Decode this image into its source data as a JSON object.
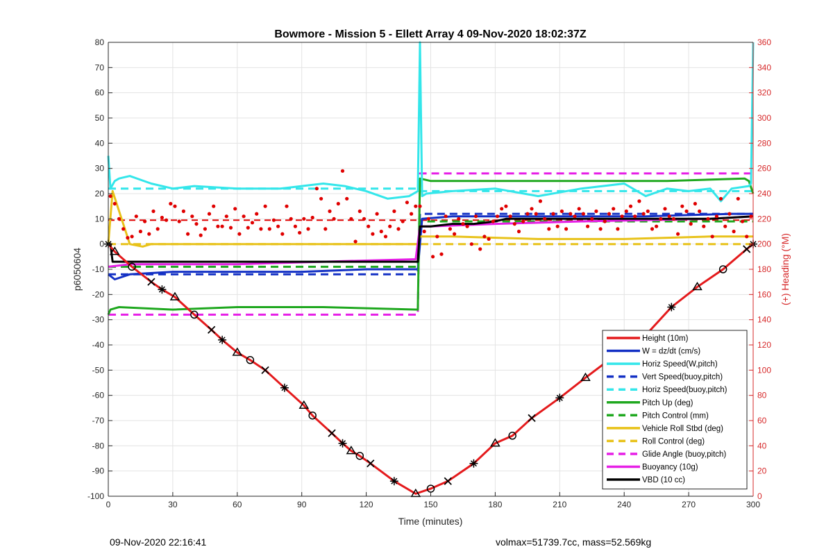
{
  "chart_data": {
    "type": "line",
    "title": "Bowmore - Mission 5 - Ellett Array 4 09-Nov-2020 18:02:37Z",
    "xlabel": "Time (minutes)",
    "ylabel": "p6050604",
    "ylabel_right": "(+) Heading (°M)",
    "xlim": [
      0,
      300
    ],
    "ylim": [
      -100,
      80
    ],
    "ylim_right": [
      0,
      360
    ],
    "x_ticks": [
      "0",
      "30",
      "60",
      "90",
      "120",
      "150",
      "180",
      "210",
      "240",
      "270",
      "300"
    ],
    "y_ticks": [
      "80",
      "70",
      "60",
      "50",
      "40",
      "30",
      "20",
      "10",
      "0",
      "-10",
      "-20",
      "-30",
      "-40",
      "-50",
      "-60",
      "-70",
      "-80",
      "-90",
      "-100"
    ],
    "y_right_ticks": [
      "360",
      "340",
      "320",
      "300",
      "280",
      "260",
      "240",
      "220",
      "200",
      "180",
      "160",
      "140",
      "120",
      "100",
      "80",
      "60",
      "40",
      "20",
      "0"
    ],
    "grid": true,
    "legend_position": "bottom-right",
    "colors": {
      "red": "#e41a1c",
      "blue": "#1330c4",
      "cyan": "#33e6ea",
      "green": "#1fa81f",
      "yellow": "#e8c21a",
      "magenta": "#e61fe6",
      "black": "#000000",
      "heading": "#e00000"
    },
    "series": [
      {
        "name": "Height (10m)",
        "color": "red",
        "dash": "solid",
        "x": [
          0,
          3,
          11,
          20,
          25,
          31,
          40,
          48,
          53,
          60,
          66,
          73,
          82,
          91,
          95,
          104,
          109,
          113,
          117,
          122,
          133,
          143,
          150,
          158,
          170,
          180,
          188,
          197,
          210,
          222,
          236,
          248,
          262,
          274,
          286,
          297,
          300
        ],
        "y": [
          0,
          -3,
          -9,
          -15,
          -18,
          -21,
          -28,
          -34,
          -38,
          -43,
          -46,
          -50,
          -57,
          -64,
          -68,
          -75,
          -79,
          -82,
          -84,
          -87,
          -94,
          -99,
          -97,
          -94,
          -87,
          -79,
          -76,
          -69,
          -61,
          -53,
          -44,
          -38,
          -25,
          -17,
          -10,
          -2,
          0
        ]
      },
      {
        "name": "W = dz/dt (cm/s)",
        "color": "blue",
        "dash": "solid",
        "x": [
          0,
          3,
          10,
          30,
          60,
          90,
          120,
          140,
          144,
          146,
          160,
          200,
          250,
          290,
          300
        ],
        "y": [
          -12,
          -14,
          -12,
          -11,
          -11,
          -11,
          -10,
          -10,
          -10,
          10,
          11,
          11,
          11,
          12,
          12
        ]
      },
      {
        "name": "Horiz Speed(W,pitch)",
        "color": "cyan",
        "dash": "solid",
        "x": [
          0,
          1,
          3,
          5,
          10,
          20,
          30,
          40,
          60,
          80,
          90,
          100,
          110,
          120,
          130,
          140,
          144,
          145,
          146,
          148,
          160,
          180,
          200,
          220,
          240,
          250,
          260,
          270,
          280,
          285,
          290,
          298,
          299,
          300
        ],
        "y": [
          35,
          22,
          25,
          26,
          27,
          24,
          22,
          23,
          22,
          22,
          23,
          24,
          23,
          21,
          18,
          19,
          21,
          80,
          19,
          20,
          21,
          22,
          19,
          22,
          24,
          19,
          22,
          21,
          22,
          17,
          22,
          23,
          24,
          80
        ]
      },
      {
        "name": "Vert Speed(buoy,pitch)",
        "color": "blue",
        "dash": "dash",
        "x": [
          0,
          144,
          145,
          300
        ],
        "y": [
          -12,
          -12,
          12,
          12
        ]
      },
      {
        "name": "Horiz Speed(buoy,pitch)",
        "color": "cyan",
        "dash": "dash",
        "x": [
          0,
          144,
          145,
          300
        ],
        "y": [
          22,
          22,
          21,
          21
        ]
      },
      {
        "name": "Pitch Up (deg)",
        "color": "green",
        "dash": "solid",
        "x": [
          0,
          1,
          5,
          30,
          60,
          100,
          144,
          145,
          150,
          180,
          220,
          260,
          296,
          298,
          300
        ],
        "y": [
          -28,
          -26,
          -25,
          -26,
          -25,
          -25,
          -26,
          26,
          25,
          25,
          25,
          25,
          26,
          25,
          20
        ]
      },
      {
        "name": "Pitch Control (mm)",
        "color": "green",
        "dash": "dash",
        "x": [
          0,
          144,
          145,
          300
        ],
        "y": [
          -9,
          -9,
          9,
          9
        ]
      },
      {
        "name": "Vehicle Roll Stbd (deg)",
        "color": "yellow",
        "dash": "solid",
        "x": [
          0,
          2,
          10,
          16,
          20,
          40,
          60,
          90,
          120,
          144,
          145,
          160,
          200,
          240,
          280,
          300
        ],
        "y": [
          0,
          21,
          0,
          -1,
          0,
          0,
          0,
          0,
          0,
          0,
          3,
          3,
          2,
          2,
          3,
          3
        ]
      },
      {
        "name": "Roll Control (deg)",
        "color": "yellow",
        "dash": "dash",
        "x": [
          0,
          144,
          145,
          300
        ],
        "y": [
          0,
          0,
          0,
          0
        ]
      },
      {
        "name": "Glide Angle (buoy,pitch)",
        "color": "magenta",
        "dash": "dash",
        "x": [
          0,
          144,
          145,
          300
        ],
        "y": [
          -28,
          -28,
          28,
          28
        ]
      },
      {
        "name": "Buoyancy (10g)",
        "color": "magenta",
        "dash": "solid",
        "x": [
          0,
          10,
          60,
          100,
          143,
          145,
          150,
          180,
          220,
          280,
          300
        ],
        "y": [
          -9,
          -8,
          -8,
          -7,
          -6,
          7,
          7,
          8,
          9,
          10,
          11
        ]
      },
      {
        "name": "VBD (10 cc)",
        "color": "black",
        "dash": "solid",
        "x": [
          0,
          1,
          2,
          143,
          144,
          145,
          150,
          160,
          170,
          180,
          185,
          190,
          220,
          280,
          300
        ],
        "y": [
          0,
          0,
          -7,
          -7,
          -7,
          7,
          7,
          8,
          8,
          9,
          10,
          10,
          10,
          10,
          11
        ]
      }
    ],
    "heading_setpoint": {
      "x": [
        0,
        144,
        145,
        300
      ],
      "y": [
        219,
        219,
        219,
        219
      ]
    },
    "heading_points": {
      "x": [
        1,
        3,
        5,
        7,
        9,
        11,
        13,
        15,
        17,
        19,
        21,
        23,
        25,
        27,
        29,
        31,
        33,
        35,
        37,
        39,
        41,
        43,
        45,
        47,
        49,
        51,
        53,
        55,
        57,
        59,
        61,
        63,
        65,
        67,
        69,
        71,
        73,
        75,
        77,
        79,
        81,
        83,
        85,
        87,
        89,
        91,
        93,
        95,
        97,
        99,
        101,
        103,
        105,
        107,
        109,
        111,
        113,
        115,
        117,
        119,
        121,
        123,
        125,
        127,
        129,
        131,
        133,
        135,
        137,
        139,
        141,
        143,
        145,
        147,
        149,
        151,
        153,
        155,
        157,
        159,
        161,
        163,
        165,
        167,
        169,
        171,
        173,
        175,
        177,
        179,
        181,
        183,
        185,
        187,
        189,
        191,
        193,
        195,
        197,
        199,
        201,
        203,
        205,
        207,
        209,
        211,
        213,
        215,
        217,
        219,
        221,
        223,
        225,
        227,
        229,
        231,
        233,
        235,
        237,
        239,
        241,
        243,
        245,
        247,
        249,
        251,
        253,
        255,
        257,
        259,
        261,
        263,
        265,
        267,
        269,
        271,
        273,
        275,
        277,
        279,
        281,
        283,
        285,
        287,
        289,
        291,
        293,
        295,
        297,
        299
      ],
      "y": [
        238,
        232,
        220,
        212,
        205,
        206,
        222,
        210,
        218,
        208,
        226,
        212,
        221,
        219,
        232,
        230,
        218,
        226,
        208,
        222,
        216,
        207,
        212,
        224,
        230,
        214,
        214,
        222,
        213,
        228,
        208,
        222,
        213,
        217,
        224,
        212,
        230,
        212,
        219,
        214,
        208,
        230,
        220,
        214,
        209,
        220,
        212,
        221,
        244,
        236,
        212,
        226,
        220,
        232,
        258,
        236,
        220,
        202,
        226,
        220,
        214,
        208,
        224,
        210,
        206,
        214,
        226,
        212,
        218,
        233,
        224,
        230,
        230,
        210,
        220,
        190,
        206,
        192,
        222,
        212,
        208,
        220,
        216,
        214,
        200,
        222,
        196,
        206,
        204,
        218,
        222,
        228,
        230,
        222,
        216,
        210,
        218,
        224,
        228,
        224,
        234,
        220,
        212,
        224,
        214,
        226,
        212,
        224,
        222,
        228,
        224,
        214,
        220,
        226,
        212,
        218,
        224,
        228,
        212,
        222,
        226,
        230,
        222,
        234,
        224,
        226,
        212,
        214,
        220,
        228,
        222,
        220,
        208,
        230,
        226,
        216,
        232,
        226,
        214,
        220,
        206,
        222,
        236,
        214,
        224,
        210,
        236,
        218,
        206,
        222
      ]
    },
    "symbols": [
      "star",
      "triangle",
      "circle",
      "x"
    ]
  },
  "footer": {
    "left": "09-Nov-2020 22:16:41",
    "right": "volmax=51739.7cc, mass=52.569kg"
  }
}
